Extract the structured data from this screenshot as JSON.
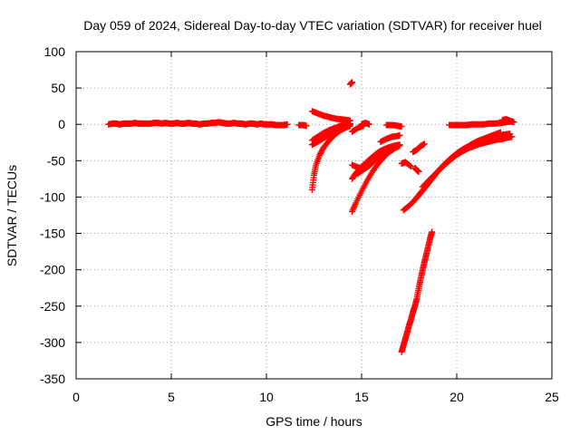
{
  "chart_data": {
    "type": "scatter",
    "title": "Day 059 of 2024, Sidereal Day-to-day VTEC variation (SDTVAR) for receiver huel",
    "xlabel": "GPS time / hours",
    "ylabel": "SDTVAR / TECUs",
    "xlim": [
      0,
      25
    ],
    "ylim": [
      -350,
      100
    ],
    "xticks": [
      0,
      5,
      10,
      15,
      20,
      25
    ],
    "yticks": [
      100,
      50,
      0,
      -50,
      -100,
      -150,
      -200,
      -250,
      -300,
      -350
    ],
    "grid": true,
    "marker": "+",
    "color": "#ff0000",
    "series": [
      {
        "x": [
          1.7,
          1.9,
          2.1,
          2.3,
          2.5,
          2.7,
          2.9,
          3.1,
          3.3,
          3.5,
          3.7,
          3.9,
          4.1,
          4.3,
          4.5,
          4.7,
          4.9,
          5.1,
          5.3,
          5.5,
          5.7,
          5.9,
          6.1,
          6.3,
          6.5,
          6.7,
          6.9,
          7.1,
          7.3,
          7.5,
          7.7,
          7.9,
          8.1,
          8.3,
          8.5,
          8.7,
          8.9,
          9.1,
          9.3,
          9.5,
          9.7,
          9.9,
          10.1,
          10.3,
          10.5,
          10.7,
          10.9,
          11.1
        ],
        "y": [
          0,
          1,
          1,
          0,
          1,
          1,
          1,
          2,
          1,
          1,
          1,
          1,
          2,
          2,
          1,
          2,
          1,
          1,
          2,
          1,
          1,
          2,
          1,
          1,
          0,
          1,
          1,
          2,
          2,
          3,
          2,
          1,
          1,
          2,
          1,
          1,
          0,
          1,
          1,
          0,
          1,
          0,
          0,
          0,
          -1,
          -1,
          -1,
          0
        ]
      },
      {
        "x": [
          11.7,
          11.9,
          12.1
        ],
        "y": [
          -1,
          -1,
          -2
        ]
      },
      {
        "x": [
          12.4,
          12.7,
          13.0,
          13.3,
          13.6,
          13.9,
          14.2,
          14.4
        ],
        "y": [
          18,
          15,
          12,
          10,
          8,
          7,
          6,
          5
        ]
      },
      {
        "x": [
          12.4,
          12.7,
          13.0,
          13.3,
          13.6,
          13.9,
          14.2,
          14.4
        ],
        "y": [
          -22,
          -17,
          -12,
          -8,
          -5,
          -2,
          0,
          1
        ]
      },
      {
        "x": [
          12.4,
          12.7,
          13.0,
          13.3,
          13.6,
          13.9,
          14.2,
          14.4
        ],
        "y": [
          -28,
          -24,
          -19,
          -14,
          -10,
          -6,
          -3,
          0
        ]
      },
      {
        "x": [
          12.4,
          12.5,
          12.6,
          12.8,
          13.0,
          13.3,
          13.6,
          13.9,
          14.2,
          14.4
        ],
        "y": [
          -90,
          -70,
          -56,
          -42,
          -32,
          -22,
          -14,
          -8,
          -4,
          -2
        ]
      },
      {
        "x": [
          14.4,
          14.5
        ],
        "y": [
          55,
          58
        ]
      },
      {
        "x": [
          14.5,
          14.8,
          15.1
        ],
        "y": [
          -10,
          -5,
          -2
        ]
      },
      {
        "x": [
          15.0,
          15.2,
          15.4
        ],
        "y": [
          0,
          2,
          0
        ]
      },
      {
        "x": [
          14.5,
          14.7,
          15.0,
          15.3,
          15.6,
          15.9,
          16.2,
          16.5,
          16.8,
          17.0
        ],
        "y": [
          -120,
          -108,
          -92,
          -77,
          -64,
          -53,
          -44,
          -37,
          -32,
          -29
        ]
      },
      {
        "x": [
          14.5,
          14.7,
          15.0,
          15.3,
          15.6,
          15.9,
          16.2,
          16.5,
          16.8,
          17.0
        ],
        "y": [
          -75,
          -67,
          -58,
          -51,
          -44,
          -38,
          -34,
          -31,
          -29,
          -28
        ]
      },
      {
        "x": [
          14.5,
          14.8,
          15.1,
          15.4,
          15.7,
          16.0,
          16.3,
          16.6,
          16.9,
          17.0
        ],
        "y": [
          -56,
          -59,
          -62,
          -57,
          -49,
          -42,
          -36,
          -32,
          -30,
          -29
        ]
      },
      {
        "x": [
          14.8,
          15.1,
          15.4,
          15.7,
          16.0,
          16.3,
          16.6,
          16.9,
          17.0
        ],
        "y": [
          -68,
          -62,
          -55,
          -48,
          -41,
          -36,
          -32,
          -30,
          -29
        ]
      },
      {
        "x": [
          16.0,
          16.3,
          16.6,
          16.9,
          17.0
        ],
        "y": [
          -24,
          -20,
          -17,
          -16,
          -15
        ]
      },
      {
        "x": [
          16.3,
          16.6,
          16.9,
          17.1
        ],
        "y": [
          -1,
          -1,
          -2,
          -3
        ]
      },
      {
        "x": [
          17.1,
          17.3,
          17.6
        ],
        "y": [
          -54,
          -52,
          -58
        ]
      },
      {
        "x": [
          17.7,
          17.9,
          18.1,
          18.3
        ],
        "y": [
          -38,
          -35,
          -30,
          -27
        ]
      },
      {
        "x": [
          17.8,
          17.9,
          18.0
        ],
        "y": [
          -60,
          -63,
          -65
        ]
      },
      {
        "x": [
          17.2,
          17.5,
          17.8,
          18.1,
          18.4,
          18.7,
          19.0,
          19.3,
          19.6,
          19.9,
          20.2,
          20.5,
          20.8,
          21.1,
          21.4,
          21.7,
          22.0,
          22.3
        ],
        "y": [
          -118,
          -112,
          -104,
          -94,
          -85,
          -75,
          -65,
          -57,
          -50,
          -43,
          -37,
          -32,
          -27,
          -23,
          -20,
          -17,
          -14,
          -11
        ]
      },
      {
        "x": [
          18.0,
          18.3,
          18.6,
          18.9,
          19.2,
          19.5,
          19.8,
          20.1,
          20.4,
          20.7,
          21.0,
          21.3,
          21.6,
          21.9,
          22.2,
          22.5,
          22.8
        ],
        "y": [
          -98,
          -88,
          -78,
          -68,
          -59,
          -51,
          -44,
          -38,
          -33,
          -29,
          -26,
          -23,
          -20,
          -18,
          -16,
          -14,
          -13
        ]
      },
      {
        "x": [
          18.2,
          18.5,
          18.8,
          19.1,
          19.4,
          19.7,
          20.0,
          20.3,
          20.6,
          20.9,
          21.2,
          21.5,
          21.8,
          22.1,
          22.4,
          22.7,
          22.9
        ],
        "y": [
          -86,
          -78,
          -70,
          -62,
          -55,
          -48,
          -42,
          -37,
          -33,
          -30,
          -27,
          -25,
          -23,
          -21,
          -20,
          -18,
          -17
        ]
      },
      {
        "x": [
          19.6,
          19.9,
          20.2,
          20.5,
          20.8,
          21.1,
          21.4,
          21.7,
          22.0,
          22.3,
          22.6,
          22.9
        ],
        "y": [
          -1,
          -1,
          -1,
          -1,
          0,
          0,
          0,
          1,
          1,
          2,
          3,
          4
        ]
      },
      {
        "x": [
          22.4,
          22.6,
          22.8,
          23.0
        ],
        "y": [
          6,
          7,
          5,
          3
        ]
      },
      {
        "x": [
          17.1,
          17.2,
          17.3,
          17.4,
          17.5,
          17.6,
          17.7,
          17.8,
          17.9,
          18.0,
          18.1,
          18.2,
          18.3,
          18.4,
          18.5,
          18.6,
          18.7
        ],
        "y": [
          -313,
          -304,
          -295,
          -286,
          -276,
          -268,
          -258,
          -250,
          -240,
          -226,
          -213,
          -201,
          -190,
          -179,
          -168,
          -157,
          -148
        ]
      }
    ]
  }
}
